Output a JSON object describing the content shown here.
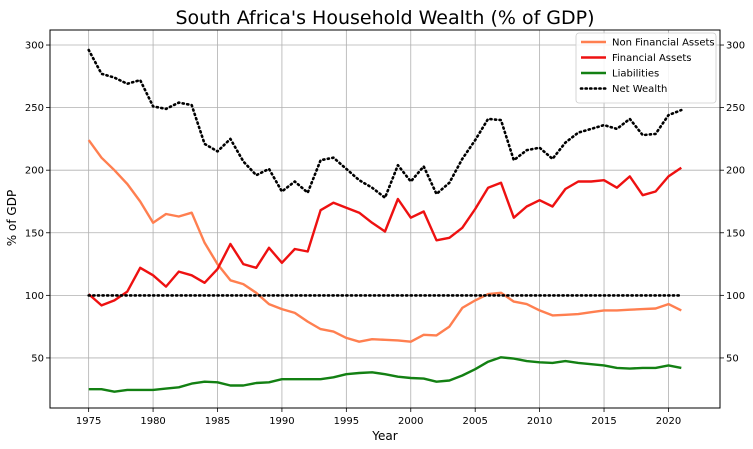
{
  "chart_data": {
    "type": "line",
    "title": "South Africa's Household Wealth (% of GDP)",
    "xlabel": "Year",
    "ylabel": "% of GDP",
    "xlim": [
      1972,
      2024
    ],
    "ylim": [
      10,
      312
    ],
    "xticks": [
      1975,
      1980,
      1985,
      1990,
      1995,
      2000,
      2005,
      2010,
      2015,
      2020
    ],
    "yticks": [
      50,
      100,
      150,
      200,
      250,
      300
    ],
    "grid": true,
    "right_axis_ticks": true,
    "legend_position": "top-right",
    "x": [
      1975,
      1976,
      1977,
      1978,
      1979,
      1980,
      1981,
      1982,
      1983,
      1984,
      1985,
      1986,
      1987,
      1988,
      1989,
      1990,
      1991,
      1992,
      1993,
      1994,
      1995,
      1996,
      1997,
      1998,
      1999,
      2000,
      2001,
      2002,
      2003,
      2004,
      2005,
      2006,
      2007,
      2008,
      2009,
      2010,
      2011,
      2012,
      2013,
      2014,
      2015,
      2016,
      2017,
      2018,
      2019,
      2020,
      2021
    ],
    "series": [
      {
        "name": "Non Financial Assets",
        "color": "#ff7f50",
        "style": "solid",
        "values": [
          224,
          210,
          200,
          189,
          175,
          158,
          165,
          163,
          166,
          142,
          125,
          112,
          109,
          102,
          93,
          89,
          86,
          79,
          73,
          71,
          66,
          63,
          65,
          64.5,
          64,
          63,
          68.5,
          68,
          75,
          90,
          96,
          101,
          102,
          95,
          93,
          88,
          84,
          84.5,
          85,
          86.5,
          88,
          88,
          88.5,
          89,
          89.5,
          93,
          88
        ]
      },
      {
        "name": "Financial Assets",
        "color": "#ee1111",
        "style": "solid",
        "values": [
          101,
          92,
          96,
          103,
          122,
          116,
          107,
          119,
          116,
          110,
          121,
          141,
          125,
          122,
          138,
          126,
          137,
          135,
          168,
          174,
          170,
          166,
          158,
          151,
          177,
          162,
          167,
          144,
          146,
          154,
          169,
          186,
          190,
          162,
          171,
          176,
          171,
          185,
          191,
          191,
          192,
          186,
          195,
          180,
          183,
          195,
          202
        ]
      },
      {
        "name": "Liabilities",
        "color": "#138013",
        "style": "solid",
        "values": [
          25,
          25,
          23,
          24.5,
          24.5,
          24.5,
          25.5,
          26.5,
          29.5,
          31,
          30.5,
          28,
          28,
          30,
          30.5,
          33,
          33,
          33,
          33,
          34.5,
          37,
          38,
          38.5,
          37,
          35,
          34,
          33.5,
          31,
          32,
          36,
          41,
          47,
          50.5,
          49.5,
          47.5,
          46.5,
          46,
          47.5,
          46,
          45,
          44,
          42,
          41.5,
          42,
          42,
          44,
          42
        ]
      },
      {
        "name": "Net Wealth",
        "color": "#000000",
        "style": "dotted",
        "values": [
          296,
          277,
          274,
          269,
          272,
          251,
          249,
          254,
          252,
          221,
          215,
          225,
          207,
          196,
          201,
          183,
          191,
          182,
          208,
          210,
          201,
          192,
          186,
          178,
          204,
          191,
          203,
          181,
          190,
          209,
          224,
          241,
          240,
          208,
          216,
          218,
          209,
          222,
          230,
          233,
          236,
          233,
          241,
          228,
          229,
          244,
          248
        ]
      },
      {
        "name": "",
        "color": "#000000",
        "style": "dotted",
        "legend": false,
        "values": [
          100,
          100,
          100,
          100,
          100,
          100,
          100,
          100,
          100,
          100,
          100,
          100,
          100,
          100,
          100,
          100,
          100,
          100,
          100,
          100,
          100,
          100,
          100,
          100,
          100,
          100,
          100,
          100,
          100,
          100,
          100,
          100,
          100,
          100,
          100,
          100,
          100,
          100,
          100,
          100,
          100,
          100,
          100,
          100,
          100,
          100,
          100
        ]
      }
    ]
  }
}
